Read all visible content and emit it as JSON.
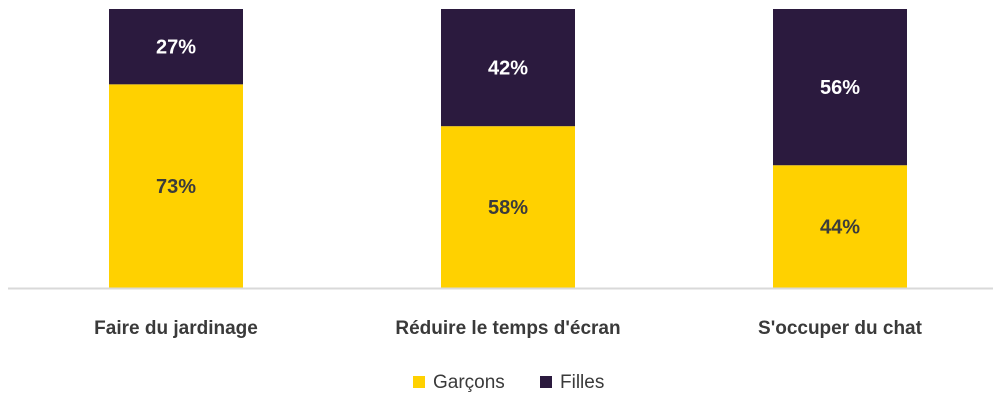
{
  "chart_data": {
    "type": "bar",
    "stacked": true,
    "percent_stacked": true,
    "categories": [
      "Faire du jardinage",
      "Réduire le temps d'écran",
      "S'occuper du chat"
    ],
    "series": [
      {
        "name": "Garçons",
        "values": [
          73,
          58,
          44
        ],
        "color": "#FFD100",
        "label_color": "#3b3b3b",
        "labels": [
          "73%",
          "58%",
          "44%"
        ]
      },
      {
        "name": "Filles",
        "values": [
          27,
          42,
          56
        ],
        "color": "#2B1A3E",
        "label_color": "#ffffff",
        "labels": [
          "27%",
          "42%",
          "56%"
        ]
      }
    ],
    "ylim": [
      0,
      100
    ],
    "grid": false,
    "legend_position": "bottom",
    "baseline_color": "#d9d9d9"
  }
}
